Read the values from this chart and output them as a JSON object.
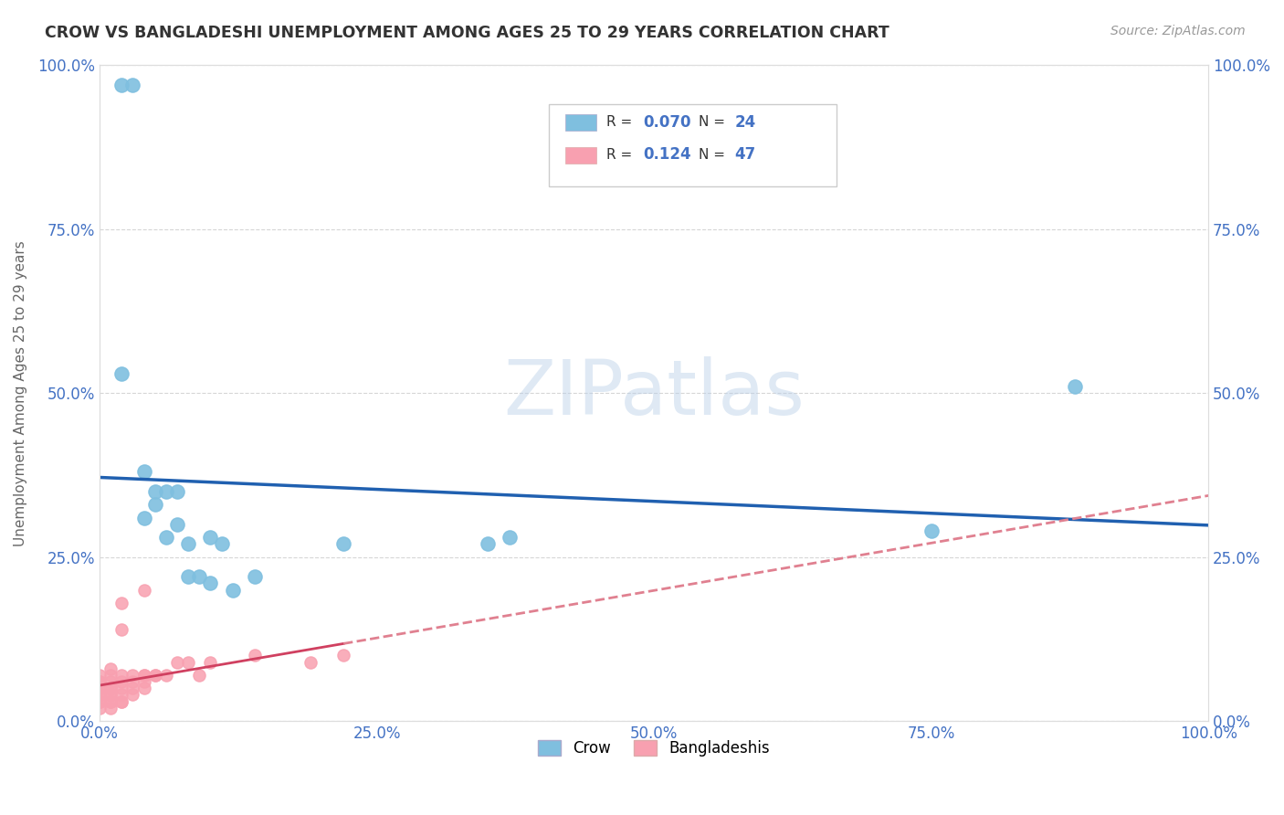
{
  "title": "CROW VS BANGLADESHI UNEMPLOYMENT AMONG AGES 25 TO 29 YEARS CORRELATION CHART",
  "source": "Source: ZipAtlas.com",
  "ylabel": "Unemployment Among Ages 25 to 29 years",
  "xlim": [
    0,
    1
  ],
  "ylim": [
    0,
    1
  ],
  "xticks": [
    0.0,
    0.25,
    0.5,
    0.75,
    1.0
  ],
  "yticks": [
    0.0,
    0.25,
    0.5,
    0.75,
    1.0
  ],
  "tick_labels": [
    "0.0%",
    "25.0%",
    "50.0%",
    "75.0%",
    "100.0%"
  ],
  "crow_color": "#7fbfdf",
  "bangladeshi_color": "#f8a0b0",
  "crow_line_color": "#2060b0",
  "bangladeshi_line_color": "#d04060",
  "bangladeshi_dash_color": "#e08090",
  "crow_R": 0.07,
  "crow_N": 24,
  "bangladeshi_R": 0.124,
  "bangladeshi_N": 47,
  "crow_x": [
    0.02,
    0.03,
    0.02,
    0.04,
    0.04,
    0.05,
    0.06,
    0.06,
    0.07,
    0.07,
    0.08,
    0.08,
    0.09,
    0.1,
    0.1,
    0.11,
    0.12,
    0.14,
    0.22,
    0.35,
    0.37,
    0.75,
    0.88,
    0.05
  ],
  "crow_y": [
    0.97,
    0.97,
    0.53,
    0.38,
    0.31,
    0.35,
    0.35,
    0.28,
    0.35,
    0.3,
    0.27,
    0.22,
    0.22,
    0.21,
    0.28,
    0.27,
    0.2,
    0.22,
    0.27,
    0.27,
    0.28,
    0.29,
    0.51,
    0.33
  ],
  "bangladeshi_x": [
    0.0,
    0.0,
    0.0,
    0.0,
    0.0,
    0.0,
    0.0,
    0.0,
    0.0,
    0.0,
    0.01,
    0.01,
    0.01,
    0.01,
    0.01,
    0.01,
    0.01,
    0.01,
    0.01,
    0.01,
    0.02,
    0.02,
    0.02,
    0.02,
    0.02,
    0.02,
    0.02,
    0.02,
    0.03,
    0.03,
    0.03,
    0.03,
    0.04,
    0.04,
    0.04,
    0.04,
    0.04,
    0.05,
    0.05,
    0.06,
    0.07,
    0.08,
    0.09,
    0.1,
    0.14,
    0.19,
    0.22
  ],
  "bangladeshi_y": [
    0.02,
    0.03,
    0.03,
    0.04,
    0.04,
    0.05,
    0.05,
    0.06,
    0.06,
    0.07,
    0.02,
    0.03,
    0.03,
    0.04,
    0.04,
    0.05,
    0.05,
    0.06,
    0.07,
    0.08,
    0.03,
    0.03,
    0.04,
    0.05,
    0.06,
    0.07,
    0.14,
    0.18,
    0.04,
    0.05,
    0.06,
    0.07,
    0.05,
    0.06,
    0.07,
    0.07,
    0.2,
    0.07,
    0.07,
    0.07,
    0.09,
    0.09,
    0.07,
    0.09,
    0.1,
    0.09,
    0.1
  ],
  "watermark": "ZIPatlas",
  "background_color": "#ffffff",
  "grid_color": "#cccccc",
  "title_color": "#333333",
  "axis_label_color": "#666666",
  "tick_color": "#4472c4"
}
